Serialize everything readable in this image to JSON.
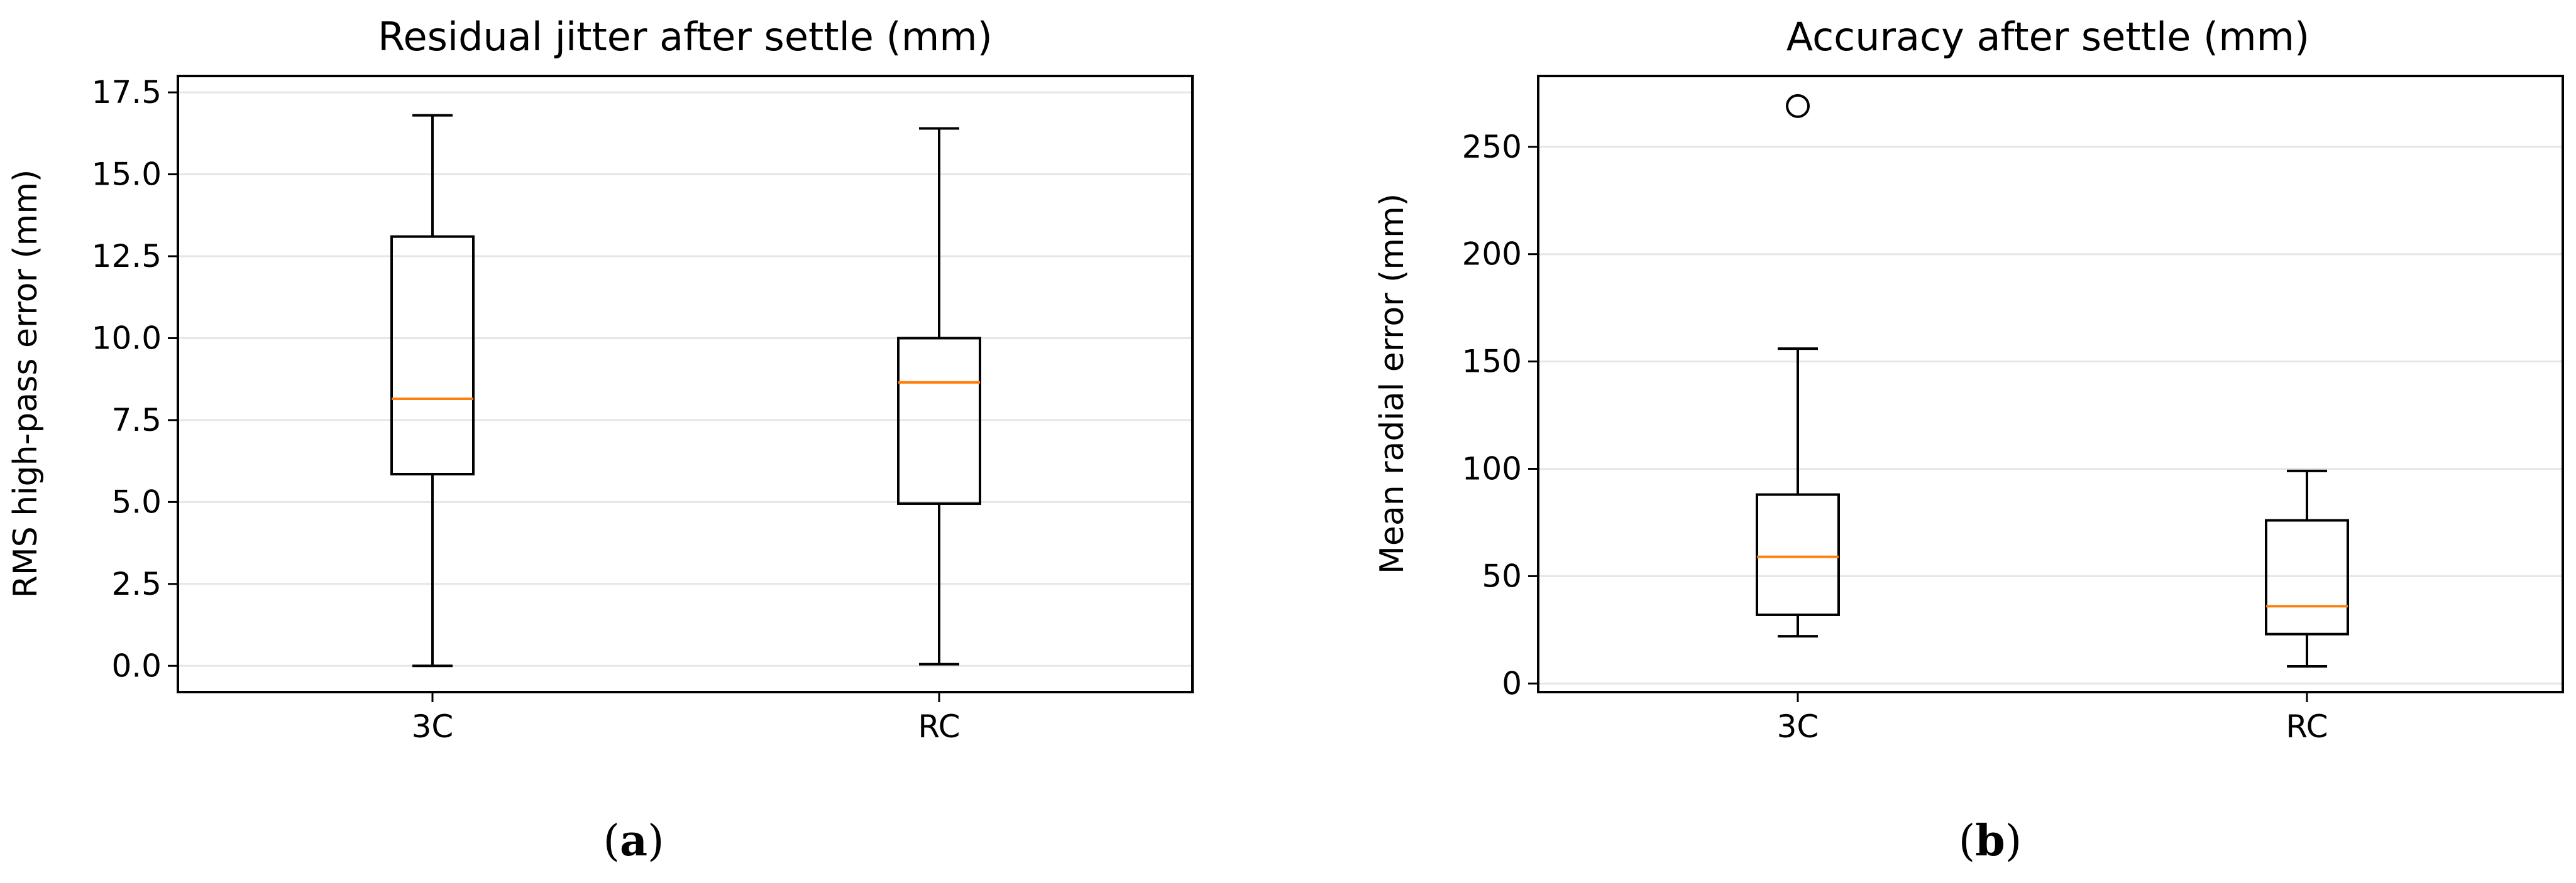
{
  "chart_data": [
    {
      "type": "box",
      "panel": "a",
      "title": "Residual jitter after settle (mm)",
      "xlabel": "",
      "ylabel": "RMS high-pass error (mm)",
      "ylim": [
        -0.8,
        18.0
      ],
      "yticks": [
        0.0,
        2.5,
        5.0,
        7.5,
        10.0,
        12.5,
        15.0,
        17.5
      ],
      "ytick_labels": [
        "0.0",
        "2.5",
        "5.0",
        "7.5",
        "10.0",
        "12.5",
        "15.0",
        "17.5"
      ],
      "grid": "y",
      "categories": [
        "3C",
        "RC"
      ],
      "boxes": [
        {
          "label": "3C",
          "whisker_low": 0.0,
          "q1": 5.85,
          "median": 8.15,
          "q3": 13.1,
          "whisker_high": 16.8,
          "outliers": []
        },
        {
          "label": "RC",
          "whisker_low": 0.05,
          "q1": 4.95,
          "median": 8.65,
          "q3": 10.0,
          "whisker_high": 16.4,
          "outliers": []
        }
      ],
      "caption": "a"
    },
    {
      "type": "box",
      "panel": "b",
      "title": "Accuracy after settle (mm)",
      "xlabel": "",
      "ylabel": "Mean radial error (mm)",
      "ylim": [
        -4,
        283
      ],
      "yticks": [
        0,
        50,
        100,
        150,
        200,
        250
      ],
      "ytick_labels": [
        "0",
        "50",
        "100",
        "150",
        "200",
        "250"
      ],
      "grid": "y",
      "categories": [
        "3C",
        "RC"
      ],
      "boxes": [
        {
          "label": "3C",
          "whisker_low": 22,
          "q1": 32,
          "median": 59,
          "q3": 88,
          "whisker_high": 156,
          "outliers": [
            269
          ]
        },
        {
          "label": "RC",
          "whisker_low": 8,
          "q1": 23,
          "median": 36,
          "q3": 76,
          "whisker_high": 99,
          "outliers": []
        }
      ],
      "caption": "b"
    }
  ],
  "colors": {
    "box": "#000000",
    "median": "#ff7f0e",
    "grid": "#e6e6e6",
    "background": "#ffffff"
  }
}
